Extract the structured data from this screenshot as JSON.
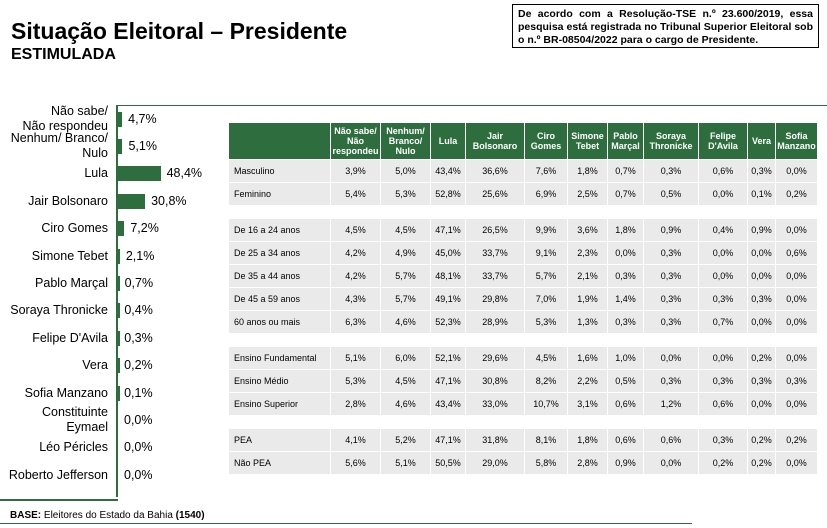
{
  "header": {
    "title": "Situação Eleitoral – Presidente",
    "subtitle": "ESTIMULADA",
    "note": "De acordo com a Resolução-TSE n.º 23.600/2019, essa pesquisa está registrada no Tribunal Superior Eleitoral sob o n.º BR-08504/2022 para o cargo de Presidente."
  },
  "footer": {
    "base_label": "BASE:",
    "base_text": " Eleitores do Estado da Bahia ",
    "base_n": "(1540)"
  },
  "colors": {
    "bar": "#2e6e3e",
    "header_bg": "#2e6e3e",
    "cell_bg": "#eaeaea",
    "rule": "#2e6e3e"
  },
  "chart_data": [
    {
      "type": "bar",
      "orientation": "horizontal",
      "title": "",
      "categories": [
        "Não sabe/ Não respondeu",
        "Nenhum/ Branco/ Nulo",
        "Lula",
        "Jair Bolsonaro",
        "Ciro Gomes",
        "Simone Tebet",
        "Pablo Marçal",
        "Soraya Thronicke",
        "Felipe D'Avila",
        "Vera",
        "Sofia Manzano",
        "Constituinte Eymael",
        "Léo Péricles",
        "Roberto Jefferson"
      ],
      "label_lines": [
        [
          "Não sabe/",
          "Não respondeu"
        ],
        [
          "Nenhum/ Branco/",
          "Nulo"
        ],
        [
          "Lula"
        ],
        [
          "Jair Bolsonaro"
        ],
        [
          "Ciro Gomes"
        ],
        [
          "Simone Tebet"
        ],
        [
          "Pablo Marçal"
        ],
        [
          "Soraya Thronicke"
        ],
        [
          "Felipe D'Avila"
        ],
        [
          "Vera"
        ],
        [
          "Sofia Manzano"
        ],
        [
          "Constituinte",
          "Eymael"
        ],
        [
          "Léo Péricles"
        ],
        [
          "Roberto Jefferson"
        ]
      ],
      "values": [
        4.7,
        5.1,
        48.4,
        30.8,
        7.2,
        2.1,
        0.7,
        0.4,
        0.3,
        0.2,
        0.1,
        0.0,
        0.0,
        0.0
      ],
      "value_labels": [
        "4,7%",
        "5,1%",
        "48,4%",
        "30,8%",
        "7,2%",
        "2,1%",
        "0,7%",
        "0,4%",
        "0,3%",
        "0,2%",
        "0,1%",
        "0,0%",
        "0,0%",
        "0,0%"
      ],
      "xlim": [
        0,
        100
      ],
      "grid": false,
      "legend": "none"
    },
    {
      "type": "table",
      "columns": [
        "Não sabe/ Não respondeu",
        "Nenhum/ Branco/ Nulo",
        "Lula",
        "Jair Bolsonaro",
        "Ciro Gomes",
        "Simone Tebet",
        "Pablo Marçal",
        "Soraya Thronicke",
        "Felipe D'Avila",
        "Vera",
        "Sofia Manzano"
      ],
      "column_lines": [
        [
          "Não sabe/",
          "Não",
          "respondeu"
        ],
        [
          "Nenhum/",
          "Branco/",
          "Nulo"
        ],
        [
          "Lula"
        ],
        [
          "Jair",
          "Bolsonaro"
        ],
        [
          "Ciro",
          "Gomes"
        ],
        [
          "Simone",
          "Tebet"
        ],
        [
          "Pablo",
          "Marçal"
        ],
        [
          "Soraya",
          "Thronicke"
        ],
        [
          "Felipe",
          "D'Avila"
        ],
        [
          "Vera"
        ],
        [
          "Sofia",
          "Manzano"
        ]
      ],
      "groups": [
        {
          "rows": [
            {
              "label": "Masculino",
              "values": [
                "3,9%",
                "5,0%",
                "43,4%",
                "36,6%",
                "7,6%",
                "1,8%",
                "0,7%",
                "0,3%",
                "0,6%",
                "0,3%",
                "0,0%"
              ]
            },
            {
              "label": "Feminino",
              "values": [
                "5,4%",
                "5,3%",
                "52,8%",
                "25,6%",
                "6,9%",
                "2,5%",
                "0,7%",
                "0,5%",
                "0,0%",
                "0,1%",
                "0,2%"
              ]
            }
          ]
        },
        {
          "rows": [
            {
              "label": "De 16 a 24 anos",
              "values": [
                "4,5%",
                "4,5%",
                "47,1%",
                "26,5%",
                "9,9%",
                "3,6%",
                "1,8%",
                "0,9%",
                "0,4%",
                "0,9%",
                "0,0%"
              ]
            },
            {
              "label": "De 25 a 34 anos",
              "values": [
                "4,2%",
                "4,9%",
                "45,0%",
                "33,7%",
                "9,1%",
                "2,3%",
                "0,0%",
                "0,3%",
                "0,0%",
                "0,0%",
                "0,6%"
              ]
            },
            {
              "label": "De 35 a 44 anos",
              "values": [
                "4,2%",
                "5,7%",
                "48,1%",
                "33,7%",
                "5,7%",
                "2,1%",
                "0,3%",
                "0,3%",
                "0,0%",
                "0,0%",
                "0,0%"
              ]
            },
            {
              "label": "De 45 a 59 anos",
              "values": [
                "4,3%",
                "5,7%",
                "49,1%",
                "29,8%",
                "7,0%",
                "1,9%",
                "1,4%",
                "0,3%",
                "0,3%",
                "0,3%",
                "0,0%"
              ]
            },
            {
              "label": "60 anos ou mais",
              "values": [
                "6,3%",
                "4,6%",
                "52,3%",
                "28,9%",
                "5,3%",
                "1,3%",
                "0,3%",
                "0,3%",
                "0,7%",
                "0,0%",
                "0,0%"
              ]
            }
          ]
        },
        {
          "rows": [
            {
              "label": "Ensino Fundamental",
              "values": [
                "5,1%",
                "6,0%",
                "52,1%",
                "29,6%",
                "4,5%",
                "1,6%",
                "1,0%",
                "0,0%",
                "0,0%",
                "0,2%",
                "0,0%"
              ]
            },
            {
              "label": "Ensino Médio",
              "values": [
                "5,3%",
                "4,5%",
                "47,1%",
                "30,8%",
                "8,2%",
                "2,2%",
                "0,5%",
                "0,3%",
                "0,3%",
                "0,3%",
                "0,3%"
              ]
            },
            {
              "label": "Ensino Superior",
              "values": [
                "2,8%",
                "4,6%",
                "43,4%",
                "33,0%",
                "10,7%",
                "3,1%",
                "0,6%",
                "1,2%",
                "0,6%",
                "0,0%",
                "0,0%"
              ]
            }
          ]
        },
        {
          "rows": [
            {
              "label": "PEA",
              "values": [
                "4,1%",
                "5,2%",
                "47,1%",
                "31,8%",
                "8,1%",
                "1,8%",
                "0,6%",
                "0,6%",
                "0,3%",
                "0,2%",
                "0,2%"
              ]
            },
            {
              "label": "Não PEA",
              "values": [
                "5,6%",
                "5,1%",
                "50,5%",
                "29,0%",
                "5,8%",
                "2,8%",
                "0,9%",
                "0,0%",
                "0,2%",
                "0,2%",
                "0,0%"
              ]
            }
          ]
        }
      ]
    }
  ]
}
